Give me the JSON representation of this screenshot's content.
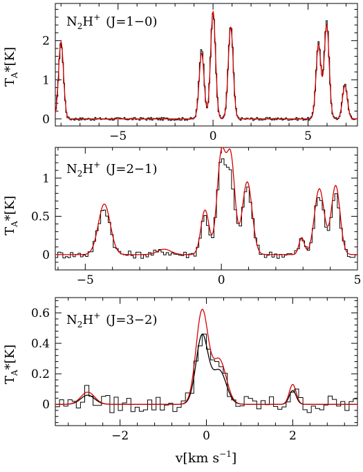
{
  "xlabel": {
    "main": "v[km s",
    "sup": "−1",
    "tail": "]"
  },
  "chart_data": [
    {
      "type": "line",
      "title": "N2H+ (J=1−0)",
      "title_parts": {
        "a": "N",
        "b": "2",
        "c": "H",
        "d": "+",
        "e": "(J=1−0)"
      },
      "ylabel": "TA*[K]",
      "ylabel_parts": {
        "a": "T",
        "b": "A",
        "c": "*[K]"
      },
      "xlim": [
        -8.3,
        7.6
      ],
      "ylim": [
        -0.18,
        2.95
      ],
      "xticks": [
        -5,
        0,
        5
      ],
      "xtick_labels": [
        "−5",
        "0",
        "5"
      ],
      "yticks": [
        0,
        1,
        2
      ],
      "ytick_labels": [
        "0",
        "1",
        "2"
      ],
      "grid": false,
      "series": [
        {
          "color": "#000000",
          "style": "histogram",
          "components": [
            [
              -8.0,
              1.92,
              0.13
            ],
            [
              -0.6,
              1.82,
              0.13
            ],
            [
              0.0,
              2.72,
              0.13
            ],
            [
              0.93,
              2.38,
              0.13
            ],
            [
              5.55,
              1.95,
              0.13
            ],
            [
              5.98,
              2.47,
              0.13
            ],
            [
              6.94,
              0.88,
              0.13
            ]
          ],
          "noise": 0.04
        },
        {
          "color": "#d40000",
          "style": "smooth",
          "components": [
            [
              -8.0,
              1.97,
              0.13
            ],
            [
              -0.6,
              1.68,
              0.13
            ],
            [
              0.0,
              2.74,
              0.13
            ],
            [
              0.93,
              2.35,
              0.13
            ],
            [
              5.55,
              1.9,
              0.13
            ],
            [
              5.98,
              2.4,
              0.13
            ],
            [
              6.94,
              0.85,
              0.13
            ]
          ],
          "noise": 0
        }
      ]
    },
    {
      "type": "line",
      "title": "N2H+ (J=2−1)",
      "title_parts": {
        "a": "N",
        "b": "2",
        "c": "H",
        "d": "+",
        "e": "(J=2−1)"
      },
      "ylabel": "TA*[K]",
      "ylabel_parts": {
        "a": "T",
        "b": "A",
        "c": "*[K]"
      },
      "xlim": [
        -6.1,
        5.0
      ],
      "ylim": [
        -0.2,
        1.4
      ],
      "xticks": [
        -5,
        0,
        5
      ],
      "xtick_labels": [
        "−5",
        "0",
        "5"
      ],
      "yticks": [
        0,
        0.5,
        1
      ],
      "ytick_labels": [
        "0",
        "0.5",
        "1"
      ],
      "grid": false,
      "series": [
        {
          "color": "#000000",
          "style": "histogram",
          "components": [
            [
              -4.3,
              0.6,
              0.22
            ],
            [
              -2.1,
              0.04,
              0.25
            ],
            [
              -0.6,
              0.5,
              0.15
            ],
            [
              0.0,
              1.18,
              0.16
            ],
            [
              0.35,
              0.95,
              0.15
            ],
            [
              0.95,
              0.88,
              0.18
            ],
            [
              2.95,
              0.2,
              0.1
            ],
            [
              3.6,
              0.76,
              0.18
            ],
            [
              4.2,
              0.78,
              0.16
            ]
          ],
          "noise": 0.05
        },
        {
          "color": "#d40000",
          "style": "smooth",
          "components": [
            [
              -4.3,
              0.66,
              0.22
            ],
            [
              -2.1,
              0.07,
              0.25
            ],
            [
              -0.6,
              0.58,
              0.15
            ],
            [
              0.0,
              1.3,
              0.16
            ],
            [
              0.35,
              1.22,
              0.15
            ],
            [
              0.95,
              0.95,
              0.18
            ],
            [
              2.95,
              0.22,
              0.1
            ],
            [
              3.6,
              0.86,
              0.18
            ],
            [
              4.2,
              0.9,
              0.16
            ]
          ],
          "noise": 0
        }
      ]
    },
    {
      "type": "line",
      "title": "N2H+ (J=3−2)",
      "title_parts": {
        "a": "N",
        "b": "2",
        "c": "H",
        "d": "+",
        "e": "(J=3−2)"
      },
      "ylabel": "TA*[K]",
      "ylabel_parts": {
        "a": "T",
        "b": "A",
        "c": "*[K]"
      },
      "xlim": [
        -3.5,
        3.5
      ],
      "ylim": [
        -0.14,
        0.7
      ],
      "xticks": [
        -2,
        0,
        2
      ],
      "xtick_labels": [
        "−2",
        "0",
        "2"
      ],
      "yticks": [
        0,
        0.2,
        0.4,
        0.6
      ],
      "ytick_labels": [
        "0",
        "0.2",
        "0.4",
        "0.6"
      ],
      "grid": false,
      "series": [
        {
          "color": "#000000",
          "style": "histogram",
          "components": [
            [
              -2.75,
              0.07,
              0.16
            ],
            [
              -0.1,
              0.46,
              0.14
            ],
            [
              0.3,
              0.24,
              0.16
            ],
            [
              2.0,
              0.1,
              0.08
            ]
          ],
          "noise": 0.06
        },
        {
          "color": "#000000",
          "style": "smooth",
          "components": [
            [
              -2.75,
              0.06,
              0.16
            ],
            [
              -0.1,
              0.45,
              0.14
            ],
            [
              0.3,
              0.22,
              0.16
            ],
            [
              2.0,
              0.09,
              0.08
            ]
          ],
          "noise": 0
        },
        {
          "color": "#d40000",
          "style": "smooth",
          "components": [
            [
              -2.75,
              0.08,
              0.16
            ],
            [
              -0.1,
              0.61,
              0.14
            ],
            [
              0.3,
              0.29,
              0.16
            ],
            [
              2.0,
              0.13,
              0.08
            ]
          ],
          "noise": 0
        }
      ]
    }
  ]
}
